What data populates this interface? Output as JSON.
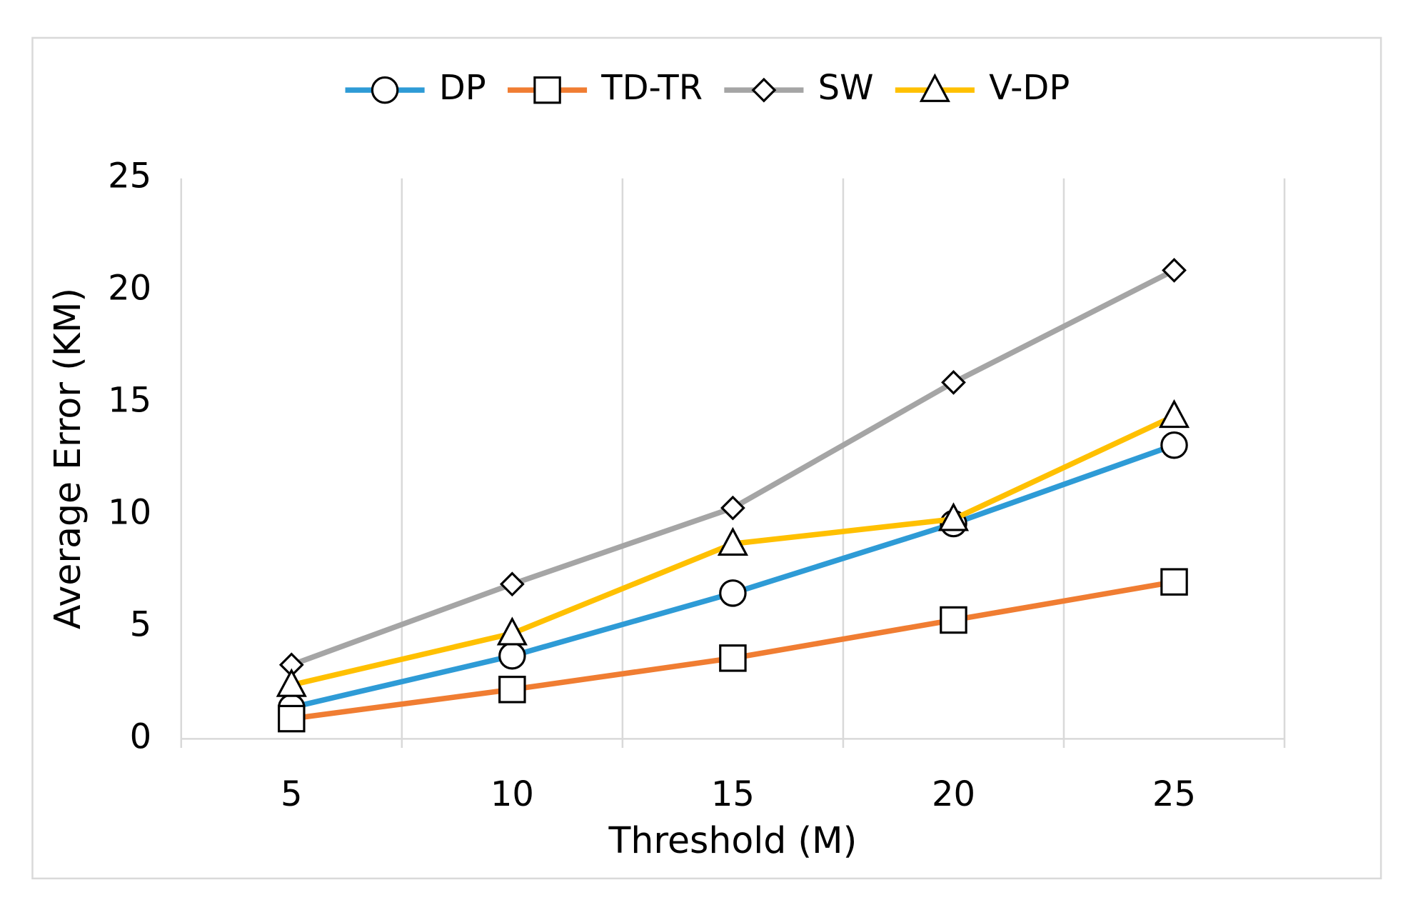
{
  "chart_data": {
    "type": "line",
    "x_label": "Threshold  (M)",
    "y_label": "Average Error  (KM)",
    "categories": [
      "5",
      "10",
      "15",
      "20",
      "25"
    ],
    "series": [
      {
        "name": "DP",
        "color": "#2e9bd6",
        "marker": "circle",
        "values": [
          1.4,
          3.7,
          6.5,
          9.6,
          13.1
        ]
      },
      {
        "name": "TD-TR",
        "color": "#f07d32",
        "marker": "square",
        "values": [
          0.9,
          2.2,
          3.6,
          5.3,
          7.0
        ]
      },
      {
        "name": "SW",
        "color": "#a5a5a5",
        "marker": "diamond",
        "values": [
          3.3,
          6.9,
          10.3,
          15.9,
          20.9
        ]
      },
      {
        "name": "V-DP",
        "color": "#ffc000",
        "marker": "triangle",
        "values": [
          2.4,
          4.7,
          8.7,
          9.8,
          14.4
        ]
      }
    ],
    "ylim": [
      0,
      25
    ],
    "yticks": [
      0,
      5,
      10,
      15,
      20,
      25
    ],
    "grid": "x",
    "legend": "top"
  }
}
